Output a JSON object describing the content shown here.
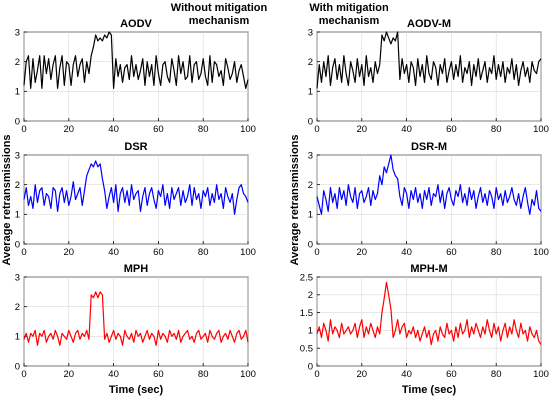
{
  "figure": {
    "heading_left_line1": "Without mitigation",
    "heading_left_line2": "mechanism",
    "heading_right_line1": "With mitigation",
    "heading_right_line2": "mechanism",
    "ylabel": "Average retransmissions",
    "xlabel": "Time (sec)"
  },
  "chart_data": [
    {
      "id": "aodv",
      "type": "line",
      "title": "AODV",
      "color": "#000000",
      "xlim": [
        0,
        100
      ],
      "ylim": [
        0,
        3
      ],
      "xticks": [
        0,
        20,
        40,
        60,
        80,
        100
      ],
      "yticks": [
        0,
        1,
        2,
        3
      ],
      "xlabel": "",
      "ylabel": "",
      "grid": true,
      "x_start": 0,
      "x_step": 1,
      "values": [
        1.2,
        2.0,
        2.2,
        1.1,
        2.1,
        1.3,
        1.7,
        2.2,
        1.1,
        2.2,
        1.6,
        2.1,
        1.4,
        1.9,
        2.2,
        1.1,
        1.8,
        2.2,
        1.2,
        2.0,
        1.9,
        1.2,
        1.9,
        2.2,
        1.5,
        1.9,
        2.1,
        1.3,
        2.0,
        1.6,
        2.2,
        2.5,
        2.9,
        2.7,
        2.8,
        2.7,
        2.9,
        2.8,
        3.0,
        2.9,
        1.1,
        2.1,
        1.5,
        1.9,
        1.3,
        1.8,
        1.9,
        1.4,
        2.2,
        1.5,
        1.9,
        1.4,
        1.7,
        2.1,
        1.2,
        2.0,
        1.5,
        1.9,
        1.2,
        2.2,
        1.6,
        1.2,
        1.9,
        2.0,
        1.5,
        1.3,
        2.1,
        1.7,
        1.2,
        2.2,
        1.6,
        2.0,
        1.4,
        1.5,
        2.2,
        1.3,
        1.9,
        2.0,
        1.4,
        1.6,
        2.1,
        1.5,
        1.2,
        2.2,
        1.3,
        2.0,
        1.9,
        1.5,
        1.7,
        1.2,
        2.1,
        1.8,
        1.4,
        1.6,
        2.0,
        1.3,
        1.7,
        1.9,
        1.5,
        1.1,
        1.4
      ]
    },
    {
      "id": "aodv-m",
      "type": "line",
      "title": "AODV-M",
      "color": "#000000",
      "xlim": [
        0,
        100
      ],
      "ylim": [
        0,
        3
      ],
      "xticks": [
        0,
        20,
        40,
        60,
        80,
        100
      ],
      "yticks": [
        0,
        1,
        2,
        3
      ],
      "xlabel": "",
      "ylabel": "",
      "grid": true,
      "x_start": 0,
      "x_step": 1,
      "values": [
        1.1,
        1.9,
        1.3,
        2.0,
        1.5,
        2.2,
        1.2,
        1.8,
        2.1,
        1.4,
        1.9,
        1.3,
        2.2,
        1.6,
        1.2,
        2.0,
        1.7,
        1.3,
        2.1,
        1.5,
        1.9,
        1.2,
        2.2,
        1.5,
        1.8,
        1.3,
        2.0,
        1.6,
        1.9,
        2.9,
        2.7,
        3.0,
        2.8,
        2.6,
        2.8,
        2.7,
        3.0,
        1.4,
        2.1,
        1.6,
        1.9,
        1.3,
        2.0,
        1.8,
        1.2,
        2.1,
        1.5,
        1.9,
        1.3,
        2.2,
        1.6,
        1.4,
        2.0,
        1.8,
        1.2,
        1.9,
        1.6,
        2.1,
        1.3,
        1.7,
        2.0,
        1.4,
        1.9,
        1.5,
        2.2,
        1.3,
        1.8,
        1.6,
        2.0,
        1.2,
        1.9,
        1.5,
        2.1,
        1.4,
        1.7,
        2.0,
        1.3,
        1.8,
        1.6,
        2.2,
        1.4,
        1.9,
        1.5,
        2.0,
        1.3,
        1.8,
        1.6,
        2.1,
        1.4,
        1.9,
        1.2,
        1.7,
        2.0,
        1.5,
        1.8,
        1.3,
        2.0,
        1.7,
        1.6,
        2.0,
        2.1
      ]
    },
    {
      "id": "dsr",
      "type": "line",
      "title": "DSR",
      "color": "#0000ff",
      "xlim": [
        0,
        100
      ],
      "ylim": [
        0,
        3
      ],
      "xticks": [
        0,
        20,
        40,
        60,
        80,
        100
      ],
      "yticks": [
        0,
        1,
        2,
        3
      ],
      "xlabel": "",
      "ylabel": "",
      "grid": true,
      "x_start": 0,
      "x_step": 1,
      "values": [
        1.5,
        1.9,
        1.3,
        1.6,
        1.2,
        2.0,
        1.4,
        1.8,
        1.9,
        1.3,
        1.7,
        1.6,
        1.2,
        1.9,
        1.8,
        1.1,
        1.7,
        1.9,
        1.4,
        1.8,
        1.3,
        1.6,
        2.1,
        1.5,
        1.7,
        1.9,
        1.3,
        1.8,
        2.3,
        2.5,
        2.7,
        2.6,
        2.8,
        2.6,
        2.7,
        2.2,
        1.8,
        1.2,
        1.6,
        1.9,
        1.4,
        2.0,
        1.1,
        1.7,
        1.9,
        1.4,
        1.8,
        1.3,
        2.0,
        1.5,
        1.7,
        1.8,
        1.1,
        1.6,
        1.9,
        1.3,
        1.7,
        1.9,
        1.5,
        1.2,
        1.8,
        1.6,
        2.0,
        1.3,
        1.7,
        1.2,
        1.9,
        1.5,
        1.7,
        1.9,
        1.3,
        1.8,
        1.4,
        1.6,
        2.0,
        1.3,
        1.9,
        1.5,
        1.7,
        1.2,
        1.8,
        1.6,
        1.9,
        1.3,
        1.7,
        1.4,
        2.0,
        1.5,
        1.7,
        1.2,
        1.9,
        1.6,
        1.4,
        1.7,
        1.0,
        1.5,
        1.9,
        2.0,
        1.7,
        1.6,
        1.4
      ]
    },
    {
      "id": "dsr-m",
      "type": "line",
      "title": "DSR-M",
      "color": "#0000ff",
      "xlim": [
        0,
        100
      ],
      "ylim": [
        0,
        3
      ],
      "xticks": [
        0,
        20,
        40,
        60,
        80,
        100
      ],
      "yticks": [
        0,
        1,
        2,
        3
      ],
      "xlabel": "",
      "ylabel": "",
      "grid": true,
      "x_start": 0,
      "x_step": 1,
      "values": [
        1.6,
        1.3,
        1.0,
        1.8,
        1.5,
        1.1,
        1.9,
        1.4,
        1.7,
        1.2,
        1.9,
        1.5,
        1.8,
        1.3,
        2.0,
        1.6,
        1.4,
        1.9,
        1.2,
        1.7,
        1.8,
        1.4,
        1.6,
        1.9,
        1.3,
        1.8,
        1.5,
        1.7,
        2.3,
        2.0,
        2.6,
        2.4,
        2.7,
        3.0,
        2.5,
        2.3,
        2.2,
        1.6,
        1.3,
        1.9,
        1.7,
        1.2,
        1.8,
        1.5,
        1.9,
        1.4,
        1.7,
        1.2,
        1.8,
        1.5,
        1.9,
        1.3,
        1.7,
        1.6,
        2.0,
        1.4,
        1.8,
        1.2,
        1.7,
        1.9,
        1.5,
        1.3,
        1.8,
        1.6,
        2.0,
        1.4,
        1.7,
        1.3,
        1.9,
        1.5,
        1.8,
        1.2,
        1.6,
        1.9,
        1.4,
        1.7,
        1.3,
        1.8,
        1.6,
        1.2,
        1.9,
        1.5,
        1.7,
        1.3,
        1.8,
        1.4,
        1.6,
        1.9,
        1.5,
        1.3,
        1.7,
        1.2,
        1.6,
        1.9,
        1.4,
        1.0,
        1.5,
        1.3,
        1.8,
        1.2,
        1.1
      ]
    },
    {
      "id": "mph",
      "type": "line",
      "title": "MPH",
      "color": "#ff0000",
      "xlim": [
        0,
        100
      ],
      "ylim": [
        0,
        3
      ],
      "xticks": [
        0,
        20,
        40,
        60,
        80,
        100
      ],
      "yticks": [
        0,
        1,
        2,
        3
      ],
      "xlabel": "Time (sec)",
      "ylabel": "",
      "grid": true,
      "x_start": 0,
      "x_step": 1,
      "values": [
        0.9,
        1.1,
        0.8,
        1.1,
        1.0,
        1.2,
        0.7,
        1.1,
        1.0,
        1.2,
        0.8,
        1.0,
        1.1,
        0.9,
        1.2,
        1.0,
        0.7,
        1.1,
        1.0,
        0.9,
        1.2,
        1.0,
        0.8,
        1.1,
        1.2,
        0.9,
        1.1,
        1.0,
        1.2,
        0.9,
        2.4,
        2.3,
        2.5,
        2.3,
        2.5,
        2.4,
        0.9,
        1.1,
        0.8,
        1.0,
        1.2,
        0.9,
        1.1,
        1.0,
        0.7,
        1.2,
        1.0,
        0.9,
        1.1,
        0.8,
        1.2,
        1.0,
        1.1,
        0.8,
        1.0,
        1.2,
        0.9,
        1.1,
        1.0,
        0.7,
        1.2,
        0.9,
        1.1,
        1.0,
        0.8,
        1.2,
        1.0,
        1.1,
        0.9,
        1.2,
        0.8,
        1.0,
        1.1,
        1.2,
        0.9,
        1.0,
        0.8,
        1.1,
        1.2,
        0.9,
        1.0,
        1.1,
        0.8,
        1.2,
        1.0,
        0.9,
        1.1,
        1.2,
        0.8,
        1.0,
        1.1,
        0.9,
        1.2,
        1.0,
        0.8,
        1.1,
        1.2,
        0.9,
        1.0,
        1.2,
        0.8
      ]
    },
    {
      "id": "mph-m",
      "type": "line",
      "title": "MPH-M",
      "color": "#ff0000",
      "xlim": [
        0,
        100
      ],
      "ylim": [
        0,
        2.5
      ],
      "xticks": [
        0,
        20,
        40,
        60,
        80,
        100
      ],
      "yticks": [
        0,
        0.5,
        1,
        1.5,
        2,
        2.5
      ],
      "xlabel": "Time (sec)",
      "ylabel": "",
      "grid": true,
      "x_start": 0,
      "x_step": 1,
      "values": [
        0.9,
        1.1,
        0.8,
        1.2,
        1.0,
        0.7,
        1.3,
        0.9,
        1.1,
        1.0,
        0.8,
        1.2,
        0.9,
        1.0,
        1.1,
        0.9,
        1.0,
        1.2,
        0.8,
        1.1,
        1.3,
        0.8,
        1.1,
        0.9,
        1.2,
        1.0,
        0.8,
        1.1,
        0.9,
        1.5,
        1.9,
        2.35,
        2.0,
        1.6,
        0.8,
        1.0,
        1.3,
        0.9,
        1.1,
        1.2,
        0.8,
        1.0,
        0.9,
        1.1,
        0.8,
        1.0,
        0.7,
        0.9,
        1.1,
        0.8,
        1.0,
        0.6,
        0.9,
        1.0,
        0.7,
        1.1,
        0.9,
        0.8,
        1.2,
        0.9,
        1.0,
        0.7,
        1.1,
        0.8,
        1.2,
        0.9,
        1.0,
        1.3,
        0.8,
        1.1,
        0.9,
        1.2,
        1.0,
        0.8,
        1.1,
        0.9,
        1.3,
        1.0,
        0.8,
        1.2,
        0.9,
        1.1,
        0.7,
        1.0,
        1.2,
        0.8,
        1.1,
        0.9,
        1.3,
        1.0,
        0.8,
        1.2,
        0.9,
        1.0,
        0.7,
        1.1,
        0.9,
        0.8,
        1.0,
        0.7,
        0.6
      ]
    }
  ]
}
